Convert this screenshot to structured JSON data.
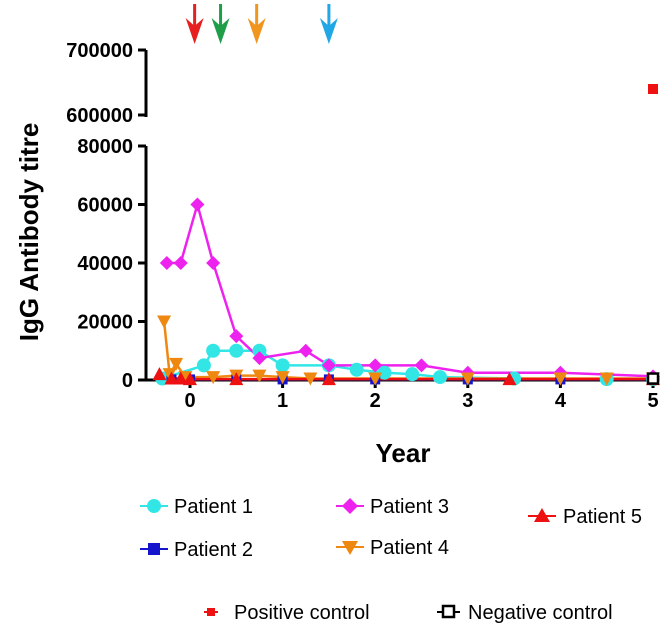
{
  "chart_data": {
    "type": "line",
    "title": "",
    "xlabel": "Year",
    "ylabel": "IgG Antibody titre",
    "xlim": [
      -0.35,
      5.05
    ],
    "ylim_lower": [
      0,
      80000
    ],
    "ylim_upper": [
      600000,
      700000
    ],
    "x_ticks": [
      0,
      1,
      2,
      3,
      4,
      5
    ],
    "y_ticks_lower": [
      0,
      20000,
      40000,
      60000,
      80000
    ],
    "y_ticks_upper": [
      600000,
      700000
    ],
    "axis_break": true,
    "series": [
      {
        "name": "Patient 1",
        "color": "#33e6e6",
        "marker": "circle",
        "points": [
          [
            -0.3,
            500
          ],
          [
            0.15,
            5000
          ],
          [
            0.25,
            10000
          ],
          [
            0.5,
            10000
          ],
          [
            0.75,
            10000
          ],
          [
            1.0,
            5000
          ],
          [
            1.5,
            5000
          ],
          [
            1.8,
            3500
          ],
          [
            2.1,
            2500
          ],
          [
            2.4,
            2000
          ],
          [
            2.7,
            1000
          ],
          [
            3.5,
            500
          ],
          [
            4.5,
            300
          ],
          [
            5.0,
            300
          ]
        ]
      },
      {
        "name": "Patient 2",
        "color": "#1515cc",
        "marker": "square",
        "points": [
          [
            -0.2,
            200
          ],
          [
            0.0,
            200
          ],
          [
            0.5,
            200
          ],
          [
            1.0,
            200
          ],
          [
            1.5,
            200
          ],
          [
            2.0,
            200
          ],
          [
            3.0,
            200
          ],
          [
            4.0,
            200
          ],
          [
            5.0,
            200
          ]
        ]
      },
      {
        "name": "Patient 3",
        "color": "#ee22ee",
        "marker": "diamond",
        "points": [
          [
            -0.25,
            40000
          ],
          [
            -0.1,
            40000
          ],
          [
            0.08,
            60000
          ],
          [
            0.25,
            40000
          ],
          [
            0.5,
            15000
          ],
          [
            0.75,
            7500
          ],
          [
            1.25,
            10000
          ],
          [
            1.5,
            5000
          ],
          [
            2.0,
            5000
          ],
          [
            2.5,
            5000
          ],
          [
            3.0,
            2500
          ],
          [
            4.0,
            2500
          ],
          [
            5.0,
            1250
          ]
        ]
      },
      {
        "name": "Patient 4",
        "color": "#ee8811",
        "marker": "triangle-down",
        "points": [
          [
            -0.28,
            20000
          ],
          [
            -0.22,
            2000
          ],
          [
            -0.15,
            5500
          ],
          [
            -0.05,
            1000
          ],
          [
            0.25,
            1000
          ],
          [
            0.5,
            1500
          ],
          [
            0.75,
            1500
          ],
          [
            1.0,
            1000
          ],
          [
            1.3,
            500
          ],
          [
            2.0,
            500
          ],
          [
            3.0,
            500
          ],
          [
            4.0,
            500
          ],
          [
            4.5,
            500
          ],
          [
            5.0,
            500
          ]
        ]
      },
      {
        "name": "Patient 5",
        "color": "#ee1111",
        "marker": "triangle-up",
        "points": [
          [
            -0.33,
            2000
          ],
          [
            -0.2,
            500
          ],
          [
            -0.1,
            500
          ],
          [
            0.0,
            300
          ],
          [
            0.5,
            300
          ],
          [
            1.5,
            300
          ],
          [
            3.45,
            300
          ],
          [
            5.0,
            300
          ]
        ]
      }
    ],
    "controls": [
      {
        "name": "Positive control",
        "color": "#ee1111",
        "marker": "square",
        "x": 5.0,
        "y": 640000
      },
      {
        "name": "Negative control",
        "color": "#000000",
        "marker": "open-square",
        "x": 5.0,
        "y": 500
      }
    ],
    "arrows": [
      {
        "x": 0.05,
        "color": "#e62020"
      },
      {
        "x": 0.33,
        "color": "#1f9e4a"
      },
      {
        "x": 0.72,
        "color": "#f0951e"
      },
      {
        "x": 1.5,
        "color": "#21a7e6"
      }
    ]
  },
  "legend": {
    "patient_1": "Patient 1",
    "patient_2": "Patient 2",
    "patient_3": "Patient 3",
    "patient_4": "Patient 4",
    "patient_5": "Patient 5",
    "positive_control": "Positive control",
    "negative_control": "Negative control"
  }
}
